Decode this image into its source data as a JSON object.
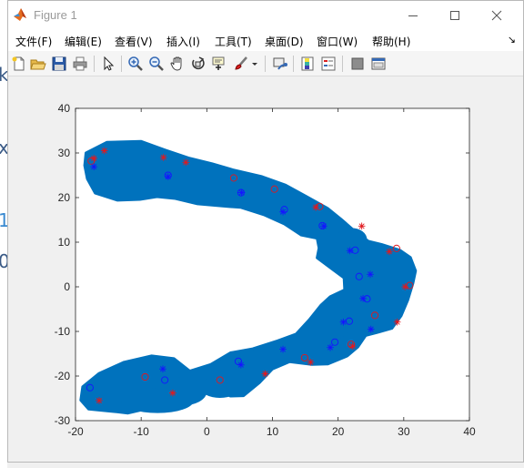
{
  "window": {
    "title": "Figure 1",
    "controls": {
      "minimize": "minimize-icon",
      "maximize": "maximize-icon",
      "close": "close-icon"
    }
  },
  "menubar": {
    "items": [
      {
        "label": "文件(F)"
      },
      {
        "label": "编辑(E)"
      },
      {
        "label": "查看(V)"
      },
      {
        "label": "插入(I)"
      },
      {
        "label": "工具(T)"
      },
      {
        "label": "桌面(D)"
      },
      {
        "label": "窗口(W)"
      },
      {
        "label": "帮助(H)"
      }
    ],
    "overflow_icon": "dock-arrow-icon"
  },
  "toolbar": {
    "icons": [
      "new-figure-icon",
      "open-file-icon",
      "save-icon",
      "print-icon",
      "edit-plot-icon",
      "zoom-in-icon",
      "zoom-out-icon",
      "pan-icon",
      "rotate-3d-icon",
      "data-cursor-icon",
      "brush-icon",
      "brush-dropdown-icon",
      "link-plot-icon",
      "colorbar-icon",
      "legend-icon",
      "hide-plot-tools-icon",
      "show-plot-tools-icon"
    ]
  },
  "background_fragments": [
    "k",
    "x",
    "1",
    "0"
  ],
  "chart_data": {
    "type": "scatter",
    "title": "",
    "xlabel": "",
    "ylabel": "",
    "xlim": [
      -20,
      40
    ],
    "ylim": [
      -30,
      40
    ],
    "xticks": [
      "-20",
      "-10",
      "0",
      "10",
      "20",
      "30",
      "40"
    ],
    "yticks": [
      "-30",
      "-20",
      "-10",
      "0",
      "10",
      "20",
      "30",
      "40"
    ],
    "grid": false,
    "colors": {
      "blob": "#0072bd",
      "red": "#e0191f",
      "blue": "#1515ff"
    },
    "blob": {
      "upper_path": [
        [
          -18.4,
          30.0
        ],
        [
          -15.2,
          32.4
        ],
        [
          -10.0,
          32.6
        ],
        [
          -6.4,
          30.7
        ],
        [
          -2.8,
          28.9
        ],
        [
          0.8,
          27.6
        ],
        [
          4.0,
          26.2
        ],
        [
          8.4,
          24.7
        ],
        [
          12.0,
          22.8
        ],
        [
          15.2,
          20.2
        ],
        [
          18.4,
          17.6
        ],
        [
          20.4,
          15.2
        ],
        [
          22.6,
          12.4
        ],
        [
          24.6,
          10.2
        ],
        [
          26.6,
          9.5
        ],
        [
          29.4,
          8.2
        ],
        [
          31.0,
          6.6
        ],
        [
          31.8,
          3.6
        ],
        [
          31.4,
          0.8
        ],
        [
          30.6,
          -3.0
        ],
        [
          29.6,
          -6.5
        ],
        [
          28.2,
          -9.3
        ],
        [
          26.0,
          -10.2
        ],
        [
          24.2,
          -10.9
        ],
        [
          23.0,
          -13.5
        ],
        [
          21.4,
          -15.5
        ],
        [
          18.4,
          -17.3
        ],
        [
          16.0,
          -17.4
        ],
        [
          12.6,
          -16.8
        ],
        [
          10.0,
          -18.4
        ],
        [
          8.0,
          -21.5
        ],
        [
          5.6,
          -24.4
        ],
        [
          3.6,
          -24.5
        ],
        [
          1.6,
          -23.0
        ],
        [
          -1.6,
          -24.3
        ],
        [
          -5.2,
          -25.6
        ],
        [
          -8.2,
          -27.0
        ],
        [
          -12.0,
          -28.3
        ],
        [
          -14.5,
          -27.9
        ],
        [
          -18.0,
          -27.4
        ],
        [
          -19.2,
          -25.4
        ],
        [
          -18.9,
          -22.4
        ],
        [
          -16.4,
          -19.4
        ],
        [
          -12.6,
          -16.9
        ],
        [
          -8.4,
          -15.5
        ],
        [
          -5.0,
          -16.1
        ],
        [
          -2.6,
          -18.9
        ],
        [
          0.6,
          -17.4
        ],
        [
          3.6,
          -14.8
        ],
        [
          7.0,
          -13.9
        ],
        [
          10.8,
          -12.1
        ],
        [
          13.6,
          -10.6
        ],
        [
          15.6,
          -7.4
        ],
        [
          17.4,
          -4.1
        ],
        [
          18.8,
          -2.2
        ],
        [
          21.0,
          -0.7
        ],
        [
          20.9,
          2.0
        ],
        [
          18.8,
          4.3
        ],
        [
          16.8,
          6.5
        ],
        [
          17.1,
          8.7
        ],
        [
          16.8,
          10.9
        ],
        [
          14.4,
          11.6
        ],
        [
          11.8,
          14.1
        ],
        [
          8.8,
          16.1
        ],
        [
          5.2,
          17.8
        ],
        [
          2.4,
          18.1
        ],
        [
          -1.4,
          18.6
        ],
        [
          -4.8,
          19.8
        ],
        [
          -7.6,
          20.2
        ],
        [
          -10.2,
          19.6
        ],
        [
          -13.6,
          19.4
        ],
        [
          -17.0,
          21.0
        ],
        [
          -18.2,
          24.2
        ],
        [
          -18.6,
          27.2
        ]
      ],
      "lobes": [
        {
          "x": -7.5,
          "y": -25.5,
          "rx": 5.5,
          "ry": 2.8
        },
        {
          "x": -4.0,
          "y": -23.5,
          "rx": 4.0,
          "ry": 3.2
        },
        {
          "x": 2.0,
          "y": -22.5,
          "rx": 3.0,
          "ry": 2.4
        },
        {
          "x": 22.0,
          "y": 10.6,
          "rx": 2.4,
          "ry": 2.6
        },
        {
          "x": 18.4,
          "y": -9.5,
          "rx": 3.2,
          "ry": 2.6
        }
      ]
    },
    "series": [
      {
        "color": "red",
        "marker": "star",
        "points": [
          [
            -17.2,
            28.8
          ],
          [
            -15.6,
            30.5
          ],
          [
            -6.6,
            29.0
          ],
          [
            -3.2,
            27.9
          ],
          [
            16.6,
            17.8
          ],
          [
            23.6,
            13.6
          ],
          [
            27.8,
            7.9
          ],
          [
            30.2,
            0.0
          ],
          [
            29.0,
            -7.9
          ],
          [
            22.2,
            -13.3
          ],
          [
            15.8,
            -16.9
          ],
          [
            8.9,
            -19.5
          ],
          [
            -5.2,
            -23.8
          ],
          [
            -16.4,
            -25.5
          ]
        ]
      },
      {
        "color": "red",
        "marker": "circle",
        "points": [
          [
            -17.6,
            28.2
          ],
          [
            4.1,
            24.4
          ],
          [
            10.3,
            21.9
          ],
          [
            17.2,
            18.0
          ],
          [
            28.9,
            8.6
          ],
          [
            30.9,
            0.3
          ],
          [
            25.6,
            -6.4
          ],
          [
            22.0,
            -12.9
          ],
          [
            14.9,
            -15.9
          ],
          [
            2.0,
            -20.9
          ],
          [
            -9.4,
            -20.2
          ]
        ]
      },
      {
        "color": "blue",
        "marker": "star",
        "points": [
          [
            -17.2,
            26.9
          ],
          [
            -5.9,
            24.7
          ],
          [
            5.3,
            21.1
          ],
          [
            11.6,
            16.8
          ],
          [
            17.8,
            13.6
          ],
          [
            21.8,
            8.1
          ],
          [
            24.9,
            2.8
          ],
          [
            23.8,
            -2.6
          ],
          [
            20.8,
            -7.9
          ],
          [
            25.0,
            -9.5
          ],
          [
            18.8,
            -13.6
          ],
          [
            11.6,
            -14.0
          ],
          [
            5.2,
            -17.5
          ],
          [
            -6.7,
            -18.4
          ]
        ]
      },
      {
        "color": "blue",
        "marker": "circle",
        "points": [
          [
            -5.9,
            25.0
          ],
          [
            5.2,
            21.1
          ],
          [
            11.8,
            17.3
          ],
          [
            17.6,
            13.7
          ],
          [
            22.6,
            8.2
          ],
          [
            23.2,
            2.3
          ],
          [
            24.4,
            -2.7
          ],
          [
            21.7,
            -7.7
          ],
          [
            19.5,
            -12.4
          ],
          [
            4.8,
            -16.7
          ],
          [
            -6.4,
            -20.9
          ],
          [
            -17.8,
            -22.6
          ]
        ]
      }
    ]
  }
}
